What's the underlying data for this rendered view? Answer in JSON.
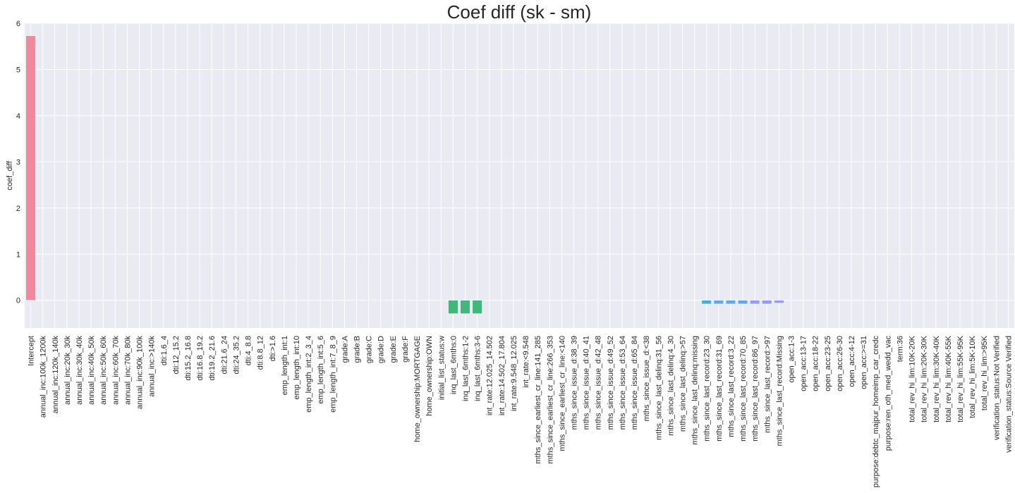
{
  "chart_data": {
    "type": "bar",
    "title": "Coef diff (sk - sm)",
    "xlabel": "",
    "ylabel": "coef_diff",
    "ylim": [
      -0.6,
      6.0
    ],
    "yticks": [
      0,
      1,
      2,
      3,
      4,
      5,
      6
    ],
    "grid": true,
    "background": "#eaeaf2",
    "grid_color": "#ffffff",
    "categories": [
      "Intercept",
      "annual_inc:100k_1200k",
      "annual_inc:120k_140k",
      "annual_inc:20k_30k",
      "annual_inc:30k_40k",
      "annual_inc:40k_50k",
      "annual_inc:50k_60k",
      "annual_inc:60k_70k",
      "annual_inc:70k_80k",
      "annual_inc:90k_100k",
      "annual_inc:>140k",
      "dti:1.6_4",
      "dti:12_15.2",
      "dti:15.2_16.8",
      "dti:16.8_19.2",
      "dti:19.2_21.6",
      "dti:21.6_24",
      "dti:24_35.2",
      "dti:4_8.8",
      "dti:8.8_12",
      "dti:>1.6",
      "emp_length_int:1",
      "emp_length_int:10",
      "emp_length_int:2_3_4",
      "emp_length_int:5_6",
      "emp_length_int:7_8_9",
      "grade:A",
      "grade:B",
      "grade:C",
      "grade:D",
      "grade:E",
      "grade:F",
      "home_ownership:MORTGAGE",
      "home_ownership:OWN",
      "initial_list_status:w",
      "inq_last_6mths:0",
      "inq_last_6mths:1-2",
      "inq_last_6mths:3-6",
      "int_rate:12.025_14.502",
      "int_rate:14.502_17.804",
      "int_rate:9.548_12.025",
      "int_rate:<9.548",
      "mths_since_earliest_cr_line:141_285",
      "mths_since_earliest_cr_line:266_353",
      "mths_since_earliest_cr_line:<140",
      "mths_since_issue_d:38_39",
      "mths_since_issue_d:40_41",
      "mths_since_issue_d:42_48",
      "mths_since_issue_d:49_52",
      "mths_since_issue_d:53_64",
      "mths_since_issue_d:65_84",
      "mths_since_issue_d:<38",
      "mths_since_last_delinq:31_56",
      "mths_since_last_delinq:4_30",
      "mths_since_last_delinq:>57",
      "mths_since_last_delinq:missing",
      "mths_since_last_record:23_30",
      "mths_since_last_record:31_69",
      "mths_since_last_record:3_22",
      "mths_since_last_record:70_85",
      "mths_since_last_record:86_97",
      "mths_since_last_record:>97",
      "mths_since_last_record:Missing",
      "open_acc:1-3",
      "open_acc:13-17",
      "open_acc:18-22",
      "open_acc:23-25",
      "open_acc:26-30",
      "open_acc:4-12",
      "open_acc:>=31",
      "purpose:debtc_majpur_homeimp_car_credc",
      "purpose:ren_oth_med_wedd_vac",
      "term:36",
      "total_rev_hi_lim:10K-20K",
      "total_rev_hi_lim:20K-30K",
      "total_rev_hi_lim:30K-40K",
      "total_rev_hi_lim:40K-55K",
      "total_rev_hi_lim:55K-95K",
      "total_rev_hi_lim:5K-10K",
      "total_rev_hi_lim:>95K",
      "verification_status:Not Verified",
      "verification_status:Source Verified"
    ],
    "values": [
      5.73,
      0.0,
      0.0,
      0.01,
      0.0,
      0.0,
      0.0,
      0.0,
      0.0,
      0.0,
      0.0,
      0.01,
      0.0,
      0.0,
      0.0,
      0.0,
      0.0,
      0.0,
      0.01,
      0.0,
      0.01,
      0.0,
      0.0,
      0.0,
      0.0,
      0.0,
      0.0,
      -0.01,
      -0.01,
      -0.01,
      -0.01,
      -0.01,
      0.0,
      0.0,
      0.0,
      -0.29,
      -0.29,
      -0.29,
      0.0,
      0.0,
      0.0,
      -0.01,
      0.0,
      0.0,
      0.0,
      0.0,
      0.0,
      0.01,
      0.0,
      0.0,
      0.0,
      0.0,
      0.0,
      0.0,
      0.0,
      0.0,
      -0.08,
      -0.08,
      -0.08,
      -0.08,
      -0.08,
      -0.08,
      -0.06,
      0.0,
      0.0,
      0.0,
      0.0,
      0.0,
      0.0,
      0.0,
      0.0,
      0.0,
      0.0,
      0.0,
      0.0,
      0.0,
      -0.01,
      -0.01,
      0.0,
      0.0,
      -0.01,
      0.0
    ],
    "palette": [
      "#f0899c",
      "#ed8b86",
      "#e98e6b",
      "#e09142",
      "#d09a42",
      "#c1a143",
      "#b2a642",
      "#a0aa42",
      "#8daf41",
      "#71b441",
      "#42b84a",
      "#43b67c",
      "#45b494",
      "#45b3a4",
      "#46b1b0",
      "#48b0bd",
      "#4aaec9",
      "#4babdb",
      "#64a7ec",
      "#919ff0",
      "#b195f1",
      "#ca8cf1",
      "#e481f1",
      "#f085de",
      "#f089c5",
      "#f088b2"
    ]
  }
}
